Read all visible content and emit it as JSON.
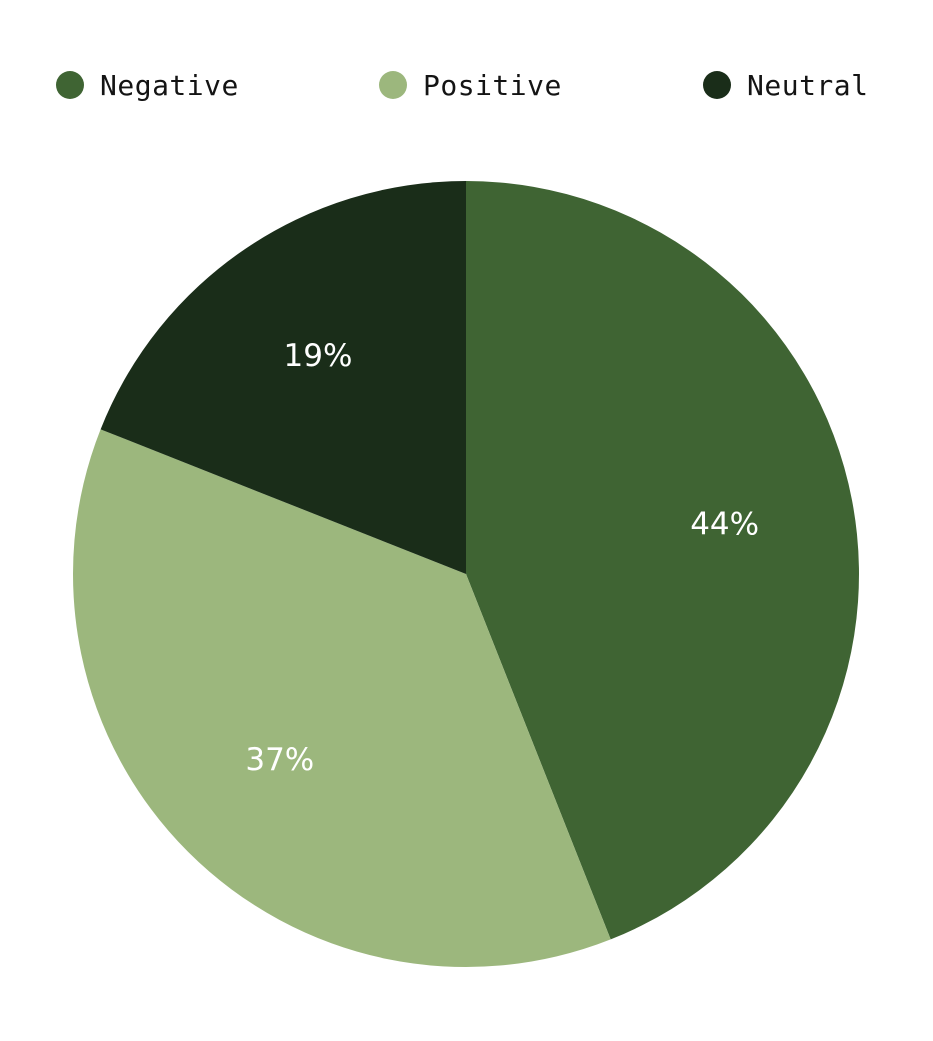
{
  "chart_data": {
    "type": "pie",
    "start_angle_deg": 0,
    "direction": "clockwise",
    "legend_position": "top",
    "slices": [
      {
        "name": "Negative",
        "value": 44,
        "label": "44%",
        "color": "#3f6433"
      },
      {
        "name": "Positive",
        "value": 37,
        "label": "37%",
        "color": "#9cb77d"
      },
      {
        "name": "Neutral",
        "value": 19,
        "label": "19%",
        "color": "#1a2d19"
      }
    ]
  }
}
